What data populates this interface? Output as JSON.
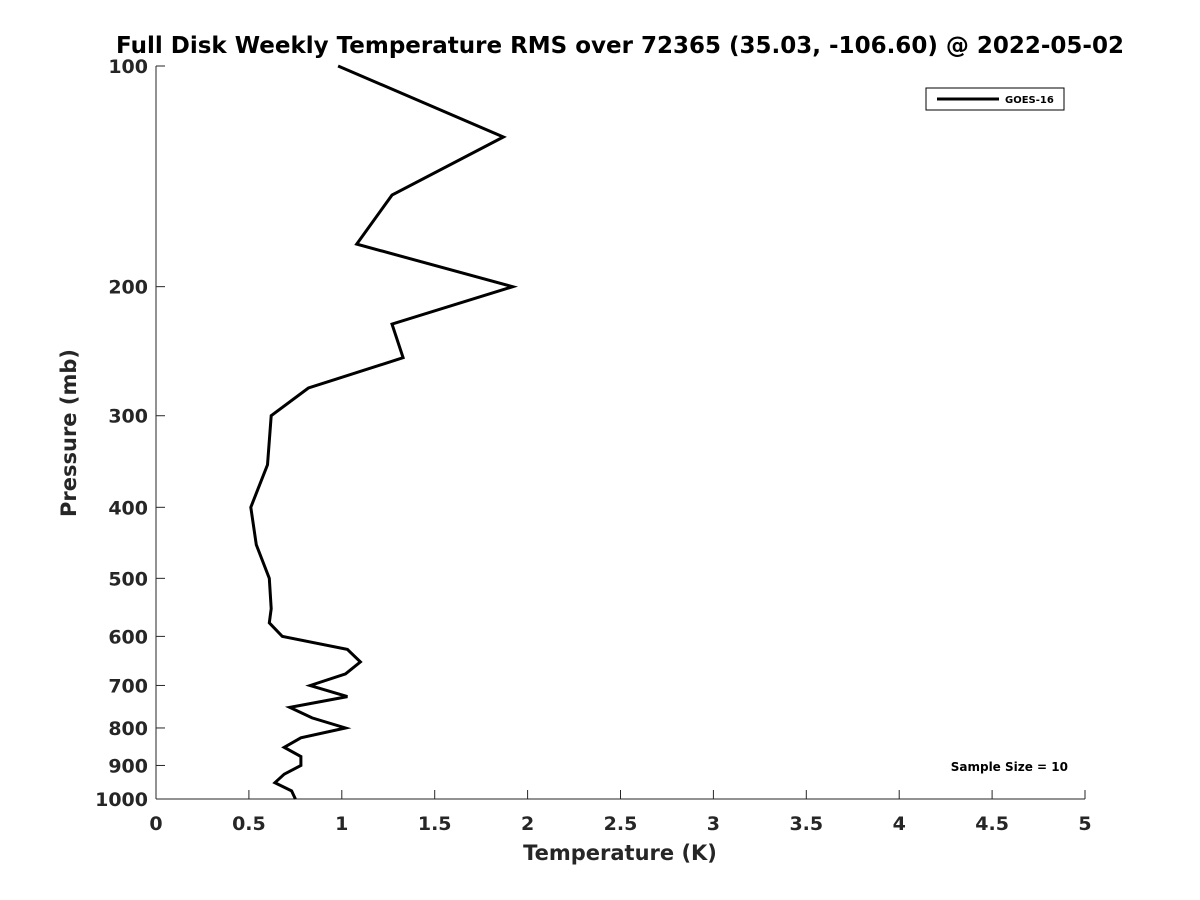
{
  "chart_data": {
    "type": "line",
    "title": "Full Disk Weekly Temperature RMS over 72365 (35.03, -106.60) @ 2022-05-02",
    "xlabel": "Temperature (K)",
    "ylabel": "Pressure (mb)",
    "xlim": [
      0,
      5
    ],
    "ylim": [
      100,
      1000
    ],
    "y_scale": "log",
    "y_reversed": true,
    "x_ticks": [
      "0",
      "0.5",
      "1",
      "1.5",
      "2",
      "2.5",
      "3",
      "3.5",
      "4",
      "4.5",
      "5"
    ],
    "y_ticks": [
      "100",
      "200",
      "300",
      "400",
      "500",
      "600",
      "700",
      "800",
      "900",
      "1000"
    ],
    "grid": false,
    "legend_position": "top-right",
    "annotation": "Sample Size = 10",
    "series": [
      {
        "name": "GOES-16",
        "color": "#000000",
        "points": [
          {
            "x": 0.98,
            "p": 100
          },
          {
            "x": 1.87,
            "p": 125
          },
          {
            "x": 1.27,
            "p": 150
          },
          {
            "x": 1.08,
            "p": 175
          },
          {
            "x": 1.92,
            "p": 200
          },
          {
            "x": 1.27,
            "p": 225
          },
          {
            "x": 1.33,
            "p": 250
          },
          {
            "x": 0.82,
            "p": 275
          },
          {
            "x": 0.62,
            "p": 300
          },
          {
            "x": 0.6,
            "p": 350
          },
          {
            "x": 0.51,
            "p": 400
          },
          {
            "x": 0.54,
            "p": 450
          },
          {
            "x": 0.61,
            "p": 500
          },
          {
            "x": 0.62,
            "p": 550
          },
          {
            "x": 0.61,
            "p": 575
          },
          {
            "x": 0.68,
            "p": 600
          },
          {
            "x": 1.03,
            "p": 625
          },
          {
            "x": 1.1,
            "p": 650
          },
          {
            "x": 1.02,
            "p": 675
          },
          {
            "x": 0.83,
            "p": 700
          },
          {
            "x": 1.03,
            "p": 725
          },
          {
            "x": 0.72,
            "p": 750
          },
          {
            "x": 0.84,
            "p": 775
          },
          {
            "x": 1.02,
            "p": 800
          },
          {
            "x": 0.78,
            "p": 825
          },
          {
            "x": 0.69,
            "p": 850
          },
          {
            "x": 0.78,
            "p": 875
          },
          {
            "x": 0.78,
            "p": 900
          },
          {
            "x": 0.69,
            "p": 925
          },
          {
            "x": 0.64,
            "p": 950
          },
          {
            "x": 0.73,
            "p": 975
          },
          {
            "x": 0.75,
            "p": 1000
          }
        ]
      }
    ]
  }
}
